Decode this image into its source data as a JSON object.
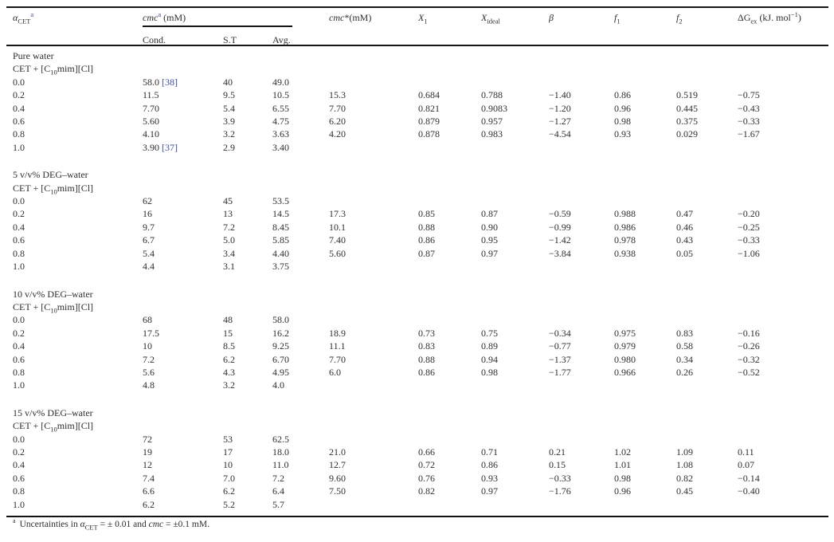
{
  "page": {
    "background": "#ffffff",
    "text_color": "#2e2e2e",
    "rule_color": "#141414",
    "link_color": "#3b4d9a"
  },
  "table": {
    "header": {
      "alpha": "<i>α</i><sub>CET</sub><sup class=\"fn\">a</sup>",
      "cmc_group": "<i>cmc</i><sup class=\"fn\">a</sup> (mM)",
      "cond": "Cond.",
      "st": "S.T",
      "avg": "Avg.",
      "cmc_star": "<i>cmc</i>*(mM)",
      "x1": "<i>X</i><sub>1</sub>",
      "xideal": "<i>X</i><sub>ideal</sub>",
      "beta": "<i>β</i>",
      "f1": "<i>f</i><sub>1</sub>",
      "f2": "<i>f</i><sub>2</sub>",
      "dgex": "ΔG<sub>ex</sub> (kJ. mol<sup>−1</sup>)"
    },
    "sections": [
      {
        "title": "Pure water",
        "system_html": "CET + [C<sub>10</sub>mim][Cl]",
        "rows": [
          {
            "alpha": "0.0",
            "cond": "58.0",
            "cond_ref": "[38]",
            "st": "40",
            "avg": "49.0",
            "cmc_star": "",
            "x1": "",
            "xideal": "",
            "beta": "",
            "f1": "",
            "f2": "",
            "dgex": ""
          },
          {
            "alpha": "0.2",
            "cond": "11.5",
            "st": "9.5",
            "avg": "10.5",
            "cmc_star": "15.3",
            "x1": "0.684",
            "xideal": "0.788",
            "beta": "−1.40",
            "f1": "0.86",
            "f2": "0.519",
            "dgex": "−0.75"
          },
          {
            "alpha": "0.4",
            "cond": "7.70",
            "st": "5.4",
            "avg": "6.55",
            "cmc_star": "7.70",
            "x1": "0.821",
            "xideal": "0.9083",
            "beta": "−1.20",
            "f1": "0.96",
            "f2": "0.445",
            "dgex": "−0.43"
          },
          {
            "alpha": "0.6",
            "cond": "5.60",
            "st": "3.9",
            "avg": "4.75",
            "cmc_star": "6.20",
            "x1": "0.879",
            "xideal": "0.957",
            "beta": "−1.27",
            "f1": "0.98",
            "f2": "0.375",
            "dgex": "−0.33"
          },
          {
            "alpha": "0.8",
            "cond": "4.10",
            "st": "3.2",
            "avg": "3.63",
            "cmc_star": "4.20",
            "x1": "0.878",
            "xideal": "0.983",
            "beta": "−4.54",
            "f1": "0.93",
            "f2": "0.029",
            "dgex": "−1.67"
          },
          {
            "alpha": "1.0",
            "cond": "3.90",
            "cond_ref": "[37]",
            "st": "2.9",
            "avg": "3.40",
            "cmc_star": "",
            "x1": "",
            "xideal": "",
            "beta": "",
            "f1": "",
            "f2": "",
            "dgex": ""
          }
        ]
      },
      {
        "title": "5 v/v% DEG–water",
        "system_html": "CET + [C<sub>10</sub>mim][Cl]",
        "rows": [
          {
            "alpha": "0.0",
            "cond": "62",
            "st": "45",
            "avg": "53.5",
            "cmc_star": "",
            "x1": "",
            "xideal": "",
            "beta": "",
            "f1": "",
            "f2": "",
            "dgex": ""
          },
          {
            "alpha": "0.2",
            "cond": "16",
            "st": "13",
            "avg": "14.5",
            "cmc_star": "17.3",
            "x1": "0.85",
            "xideal": "0.87",
            "beta": "−0.59",
            "f1": "0.988",
            "f2": "0.47",
            "dgex": "−0.20"
          },
          {
            "alpha": "0.4",
            "cond": "9.7",
            "st": "7.2",
            "avg": "8.45",
            "cmc_star": "10.1",
            "x1": "0.88",
            "xideal": "0.90",
            "beta": "−0.99",
            "f1": "0.986",
            "f2": "0.46",
            "dgex": "−0.25"
          },
          {
            "alpha": "0.6",
            "cond": "6.7",
            "st": "5.0",
            "avg": "5.85",
            "cmc_star": "7.40",
            "x1": "0.86",
            "xideal": "0.95",
            "beta": "−1.42",
            "f1": "0.978",
            "f2": "0.43",
            "dgex": "−0.33"
          },
          {
            "alpha": "0.8",
            "cond": "5.4",
            "st": "3.4",
            "avg": "4.40",
            "cmc_star": "5.60",
            "x1": "0.87",
            "xideal": "0.97",
            "beta": "−3.84",
            "f1": "0.938",
            "f2": "0.05",
            "dgex": "−1.06"
          },
          {
            "alpha": "1.0",
            "cond": "4.4",
            "st": "3.1",
            "avg": "3.75",
            "cmc_star": "",
            "x1": "",
            "xideal": "",
            "beta": "",
            "f1": "",
            "f2": "",
            "dgex": ""
          }
        ]
      },
      {
        "title": "10 v/v% DEG–water",
        "system_html": "CET + [C<sub>10</sub>mim][Cl]",
        "rows": [
          {
            "alpha": "0.0",
            "cond": "68",
            "st": "48",
            "avg": "58.0",
            "cmc_star": "",
            "x1": "",
            "xideal": "",
            "beta": "",
            "f1": "",
            "f2": "",
            "dgex": ""
          },
          {
            "alpha": "0.2",
            "cond": "17.5",
            "st": "15",
            "avg": "16.2",
            "cmc_star": "18.9",
            "x1": "0.73",
            "xideal": "0.75",
            "beta": "−0.34",
            "f1": "0.975",
            "f2": "0.83",
            "dgex": "−0.16"
          },
          {
            "alpha": "0.4",
            "cond": "10",
            "st": "8.5",
            "avg": "9.25",
            "cmc_star": "11.1",
            "x1": "0.83",
            "xideal": "0.89",
            "beta": "−0.77",
            "f1": "0.979",
            "f2": "0.58",
            "dgex": "−0.26"
          },
          {
            "alpha": "0.6",
            "cond": "7.2",
            "st": "6.2",
            "avg": "6.70",
            "cmc_star": "7.70",
            "x1": "0.88",
            "xideal": "0.94",
            "beta": "−1.37",
            "f1": "0.980",
            "f2": "0.34",
            "dgex": "−0.32"
          },
          {
            "alpha": "0.8",
            "cond": "5.6",
            "st": "4.3",
            "avg": "4.95",
            "cmc_star": "6.0",
            "x1": "0.86",
            "xideal": "0.98",
            "beta": "−1.77",
            "f1": "0.966",
            "f2": "0.26",
            "dgex": "−0.52"
          },
          {
            "alpha": "1.0",
            "cond": "4.8",
            "st": "3.2",
            "avg": "4.0",
            "cmc_star": "",
            "x1": "",
            "xideal": "",
            "beta": "",
            "f1": "",
            "f2": "",
            "dgex": ""
          }
        ]
      },
      {
        "title": "15 v/v% DEG–water",
        "system_html": "CET + [C<sub>10</sub>mim][Cl]",
        "rows": [
          {
            "alpha": "0.0",
            "cond": "72",
            "st": "53",
            "avg": "62.5",
            "cmc_star": "",
            "x1": "",
            "xideal": "",
            "beta": "",
            "f1": "",
            "f2": "",
            "dgex": ""
          },
          {
            "alpha": "0.2",
            "cond": "19",
            "st": "17",
            "avg": "18.0",
            "cmc_star": "21.0",
            "x1": "0.66",
            "xideal": "0.71",
            "beta": "0.21",
            "f1": "1.02",
            "f2": "1.09",
            "dgex": "0.11"
          },
          {
            "alpha": "0.4",
            "cond": "12",
            "st": "10",
            "avg": "11.0",
            "cmc_star": "12.7",
            "x1": "0.72",
            "xideal": "0.86",
            "beta": "0.15",
            "f1": "1.01",
            "f2": "1.08",
            "dgex": "0.07"
          },
          {
            "alpha": "0.6",
            "cond": "7.4",
            "st": "7.0",
            "avg": "7.2",
            "cmc_star": "9.60",
            "x1": "0.76",
            "xideal": "0.93",
            "beta": "−0.33",
            "f1": "0.98",
            "f2": "0.82",
            "dgex": "−0.14"
          },
          {
            "alpha": "0.8",
            "cond": "6.6",
            "st": "6.2",
            "avg": "6.4",
            "cmc_star": "7.50",
            "x1": "0.82",
            "xideal": "0.97",
            "beta": "−1.76",
            "f1": "0.96",
            "f2": "0.45",
            "dgex": "−0.40"
          },
          {
            "alpha": "1.0",
            "cond": "6.2",
            "st": "5.2",
            "avg": "5.7",
            "cmc_star": "",
            "x1": "",
            "xideal": "",
            "beta": "",
            "f1": "",
            "f2": "",
            "dgex": ""
          }
        ]
      }
    ]
  },
  "footnote": {
    "marker": "a",
    "text_html": "Uncertainties in <i>α</i><sub>CET</sub> = ± 0.01 and <i>cmc</i> = ±0.1 mM."
  }
}
